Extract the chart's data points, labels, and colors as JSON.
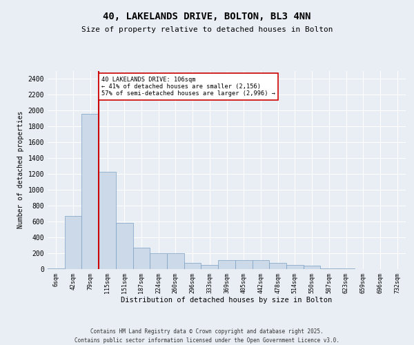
{
  "title1": "40, LAKELANDS DRIVE, BOLTON, BL3 4NN",
  "title2": "Size of property relative to detached houses in Bolton",
  "xlabel": "Distribution of detached houses by size in Bolton",
  "ylabel": "Number of detached properties",
  "categories": [
    "6sqm",
    "42sqm",
    "79sqm",
    "115sqm",
    "151sqm",
    "187sqm",
    "224sqm",
    "260sqm",
    "296sqm",
    "333sqm",
    "369sqm",
    "405sqm",
    "442sqm",
    "478sqm",
    "514sqm",
    "550sqm",
    "587sqm",
    "623sqm",
    "659sqm",
    "696sqm",
    "732sqm"
  ],
  "values": [
    10,
    670,
    1960,
    1230,
    580,
    270,
    200,
    200,
    75,
    50,
    110,
    110,
    110,
    80,
    50,
    45,
    10,
    5,
    3,
    2,
    2
  ],
  "bar_color": "#ccd9e8",
  "bar_edgecolor": "#7a9fc2",
  "annotation_text": "40 LAKELANDS DRIVE: 106sqm\n← 41% of detached houses are smaller (2,156)\n57% of semi-detached houses are larger (2,996) →",
  "annotation_box_color": "#ffffff",
  "annotation_box_edgecolor": "#cc0000",
  "footer": "Contains HM Land Registry data © Crown copyright and database right 2025.\nContains public sector information licensed under the Open Government Licence v3.0.",
  "ylim": [
    0,
    2500
  ],
  "yticks": [
    0,
    200,
    400,
    600,
    800,
    1000,
    1200,
    1400,
    1600,
    1800,
    2000,
    2200,
    2400
  ],
  "bg_color": "#e8eef4",
  "plot_bg_color": "#e8eef4",
  "grid_color": "#ffffff",
  "redline_color": "#cc0000",
  "redline_xindex": 2.5
}
